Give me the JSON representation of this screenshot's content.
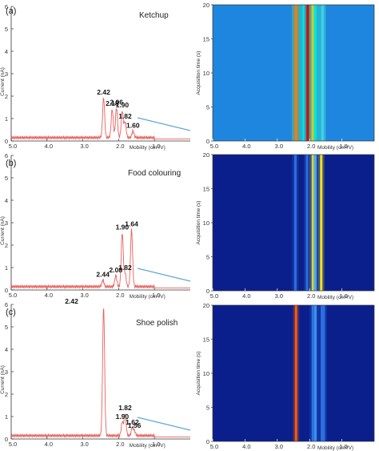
{
  "figure": {
    "colors": {
      "spectrum_line": "#e8615c",
      "reference_line": "#5fa9d2",
      "axis": "#333333",
      "heatmap_background": "#0b1f8c",
      "heatmap_ketchup_background": "#1f86df"
    }
  },
  "chart_data": [
    {
      "type": "line",
      "panel_letter": "(a)",
      "title": "Ketchup",
      "xlabel": "Mobility (cm²/V)",
      "ylabel": "Current (nA)",
      "x_reversed": true,
      "xlim": [
        5.0,
        0.0
      ],
      "ylim": [
        0,
        6
      ],
      "x_ticks": [
        "5.0",
        "4.0",
        "3.0",
        "2.0",
        "1.0"
      ],
      "y_ticks": [
        "0",
        "1",
        "2",
        "3",
        "4",
        "5",
        "6"
      ],
      "baseline": 0.15,
      "peaks": [
        {
          "x": 2.42,
          "y": 1.93,
          "label": "2.42"
        },
        {
          "x": 2.18,
          "y": 1.42,
          "label": "2.18"
        },
        {
          "x": 2.06,
          "y": 1.49,
          "label": "2.06"
        },
        {
          "x": 1.9,
          "y": 1.35,
          "label": "1.90"
        },
        {
          "x": 1.82,
          "y": 0.85,
          "label": "1.82"
        },
        {
          "x": 1.6,
          "y": 0.45,
          "label": "1.60"
        }
      ]
    },
    {
      "type": "line",
      "panel_letter": "(b)",
      "title": "Food colouring",
      "xlabel": "Mobility (cm²/V)",
      "ylabel": "Current (nA)",
      "x_reversed": true,
      "xlim": [
        5.0,
        0.0
      ],
      "ylim": [
        0,
        6
      ],
      "x_ticks": [
        "5.0",
        "4.0",
        "3.0",
        "2.0",
        "1.0"
      ],
      "y_ticks": [
        "0",
        "1",
        "2",
        "3",
        "4",
        "5",
        "6"
      ],
      "baseline": 0.15,
      "peaks": [
        {
          "x": 2.44,
          "y": 0.45,
          "label": "2.44"
        },
        {
          "x": 2.08,
          "y": 0.65,
          "label": "2.08"
        },
        {
          "x": 1.9,
          "y": 2.55,
          "label": "1.90"
        },
        {
          "x": 1.82,
          "y": 0.75,
          "label": "1.82"
        },
        {
          "x": 1.64,
          "y": 2.7,
          "label": "1.64"
        }
      ]
    },
    {
      "type": "line",
      "panel_letter": "(c)",
      "title": "Shoe polish",
      "xlabel": "Mobility (cm²/V)",
      "ylabel": "Current (nA)",
      "x_reversed": true,
      "xlim": [
        5.0,
        0.0
      ],
      "ylim": [
        0,
        6
      ],
      "x_ticks": [
        "5.0",
        "4.0",
        "3.0",
        "2.0",
        "1.0"
      ],
      "y_ticks": [
        "0",
        "1",
        "2",
        "3",
        "4",
        "5",
        "6"
      ],
      "baseline": 0.15,
      "peaks": [
        {
          "x": 2.42,
          "y": 5.9,
          "label": "2.42"
        },
        {
          "x": 1.9,
          "y": 0.75,
          "label": "1.90"
        },
        {
          "x": 1.82,
          "y": 1.15,
          "label": "1.82"
        },
        {
          "x": 1.62,
          "y": 0.5,
          "label": "1.62"
        },
        {
          "x": 1.56,
          "y": 0.35,
          "label": "1.56"
        }
      ]
    },
    {
      "type": "heatmap",
      "panel": "a-heatmap",
      "xlabel": "Mobility (cm²/V)",
      "ylabel": "Acquisition time (s)",
      "x_reversed": true,
      "xlim": [
        5.0,
        0.0
      ],
      "ylim": [
        0,
        20
      ],
      "x_ticks": [
        "5.0",
        "4.0",
        "3.0",
        "2.0",
        "1.0"
      ],
      "y_ticks": [
        "0",
        "5",
        "10",
        "15",
        "20"
      ],
      "bands": [
        {
          "x": 2.42,
          "color": "#ff7a00"
        },
        {
          "x": 2.18,
          "color": "#00e0e8"
        },
        {
          "x": 2.06,
          "color": "#c81010"
        },
        {
          "x": 1.9,
          "color": "#e8d000"
        },
        {
          "x": 1.82,
          "color": "#00e0e8"
        },
        {
          "x": 1.6,
          "color": "#3fd0f0"
        }
      ]
    },
    {
      "type": "heatmap",
      "panel": "b-heatmap",
      "xlabel": "Mobility (cm²/V)",
      "ylabel": "Acquisition time (s)",
      "x_reversed": true,
      "xlim": [
        5.0,
        0.0
      ],
      "ylim": [
        0,
        20
      ],
      "x_ticks": [
        "5.0",
        "4.0",
        "3.0",
        "2.0",
        "1.0"
      ],
      "y_ticks": [
        "0",
        "5",
        "10",
        "15",
        "20"
      ],
      "bands": [
        {
          "x": 2.44,
          "color": "#2a6fe0"
        },
        {
          "x": 2.08,
          "color": "#2a6fe0"
        },
        {
          "x": 1.9,
          "color": "#f0e020"
        },
        {
          "x": 1.82,
          "color": "#4aa8f0"
        },
        {
          "x": 1.64,
          "color": "#f0e020"
        }
      ]
    },
    {
      "type": "heatmap",
      "panel": "c-heatmap",
      "xlabel": "Mobility (cm²/V)",
      "ylabel": "Acquisition time (s)",
      "x_reversed": true,
      "xlim": [
        5.0,
        0.0
      ],
      "ylim": [
        0,
        20
      ],
      "x_ticks": [
        "5.0",
        "4.0",
        "3.0",
        "2.0",
        "1.0"
      ],
      "y_ticks": [
        "0",
        "5",
        "10",
        "15",
        "20"
      ],
      "bands": [
        {
          "x": 2.42,
          "color": "#ff5a00"
        },
        {
          "x": 1.9,
          "color": "#2a6fe0"
        },
        {
          "x": 1.82,
          "color": "#3a90f0"
        },
        {
          "x": 1.62,
          "color": "#2a6fe0"
        },
        {
          "x": 1.56,
          "color": "#2a6fe0"
        }
      ]
    }
  ]
}
